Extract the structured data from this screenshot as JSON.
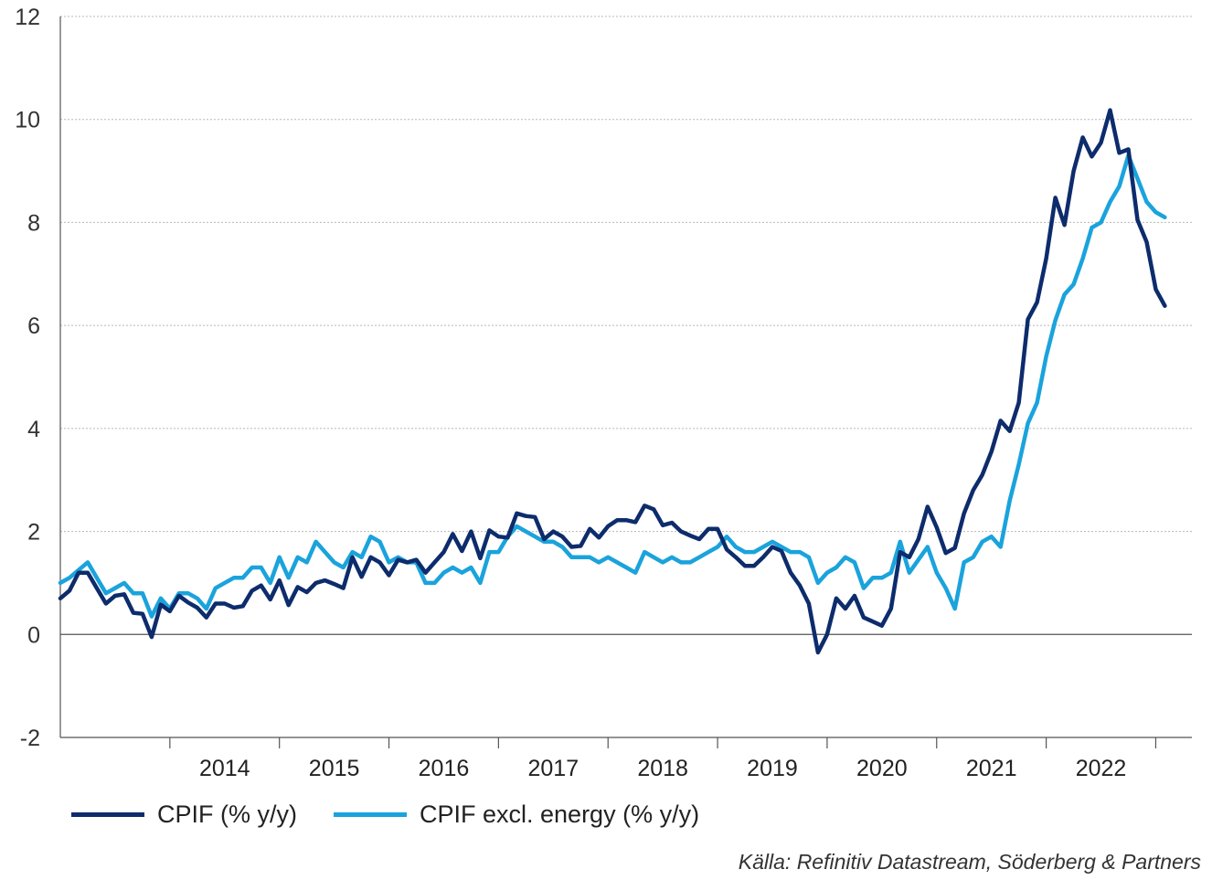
{
  "chart_data": {
    "type": "line",
    "title": "",
    "xlabel": "",
    "ylabel": "",
    "ylim": [
      -2,
      12
    ],
    "yticks": [
      -2,
      0,
      2,
      4,
      6,
      8,
      10,
      12
    ],
    "xlim": [
      2013.0,
      2023.33
    ],
    "xticks": [
      "2014",
      "2015",
      "2016",
      "2017",
      "2018",
      "2019",
      "2020",
      "2021",
      "2022"
    ],
    "grid": "horizontal-dotted",
    "legend_position": "bottom-left",
    "x_start": "2013-01",
    "x_step": "month",
    "series": [
      {
        "name": "CPIF (% y/y)",
        "color": "#0d2c6c",
        "values": [
          0.7,
          0.85,
          1.2,
          1.2,
          0.9,
          0.6,
          0.75,
          0.78,
          0.42,
          0.4,
          -0.05,
          0.58,
          0.45,
          0.75,
          0.62,
          0.52,
          0.33,
          0.6,
          0.6,
          0.52,
          0.55,
          0.85,
          0.95,
          0.68,
          1.05,
          0.57,
          0.92,
          0.82,
          1.0,
          1.05,
          0.98,
          0.9,
          1.5,
          1.12,
          1.5,
          1.4,
          1.15,
          1.45,
          1.4,
          1.45,
          1.2,
          1.4,
          1.6,
          1.95,
          1.62,
          2.0,
          1.48,
          2.02,
          1.9,
          1.88,
          2.35,
          2.3,
          2.28,
          1.85,
          2.0,
          1.9,
          1.7,
          1.72,
          2.05,
          1.88,
          2.1,
          2.22,
          2.22,
          2.18,
          2.5,
          2.43,
          2.12,
          2.17,
          2.0,
          1.92,
          1.85,
          2.05,
          2.05,
          1.65,
          1.5,
          1.33,
          1.33,
          1.5,
          1.7,
          1.62,
          1.2,
          0.95,
          0.6,
          -0.35,
          0.0,
          0.7,
          0.5,
          0.75,
          0.33,
          0.25,
          0.17,
          0.5,
          1.6,
          1.5,
          1.85,
          2.48,
          2.08,
          1.58,
          1.68,
          2.35,
          2.8,
          3.1,
          3.55,
          4.15,
          3.95,
          4.5,
          6.12,
          6.45,
          7.3,
          8.48,
          7.95,
          9.0,
          9.65,
          9.28,
          9.55,
          10.18,
          9.35,
          9.42,
          8.05,
          7.62,
          6.7,
          6.38
        ]
      },
      {
        "name": "CPIF excl. energy (% y/y)",
        "color": "#1aa3dc",
        "values": [
          1.0,
          1.1,
          1.25,
          1.4,
          1.1,
          0.8,
          0.9,
          1.0,
          0.8,
          0.8,
          0.35,
          0.7,
          0.5,
          0.8,
          0.8,
          0.7,
          0.5,
          0.9,
          1.0,
          1.1,
          1.1,
          1.3,
          1.3,
          1.0,
          1.5,
          1.1,
          1.5,
          1.4,
          1.8,
          1.6,
          1.4,
          1.3,
          1.6,
          1.5,
          1.9,
          1.8,
          1.4,
          1.5,
          1.4,
          1.4,
          1.0,
          1.0,
          1.2,
          1.3,
          1.2,
          1.3,
          1.0,
          1.6,
          1.6,
          1.9,
          2.1,
          2.0,
          1.9,
          1.8,
          1.8,
          1.7,
          1.5,
          1.5,
          1.5,
          1.4,
          1.5,
          1.4,
          1.3,
          1.2,
          1.6,
          1.5,
          1.4,
          1.5,
          1.4,
          1.4,
          1.5,
          1.6,
          1.7,
          1.9,
          1.7,
          1.6,
          1.6,
          1.7,
          1.8,
          1.7,
          1.6,
          1.6,
          1.5,
          1.0,
          1.2,
          1.3,
          1.5,
          1.4,
          0.9,
          1.1,
          1.1,
          1.2,
          1.8,
          1.2,
          1.45,
          1.7,
          1.2,
          0.9,
          0.5,
          1.4,
          1.5,
          1.8,
          1.9,
          1.7,
          2.6,
          3.3,
          4.1,
          4.5,
          5.4,
          6.1,
          6.6,
          6.8,
          7.3,
          7.9,
          8.0,
          8.4,
          8.7,
          9.3,
          8.85,
          8.4,
          8.2,
          8.1
        ]
      }
    ]
  },
  "legend": [
    {
      "label": "CPIF (% y/y)",
      "color": "#0d2c6c"
    },
    {
      "label": "CPIF excl. energy (% y/y)",
      "color": "#1aa3dc"
    }
  ],
  "source": "Källa: Refinitiv Datastream, Söderberg & Partners"
}
